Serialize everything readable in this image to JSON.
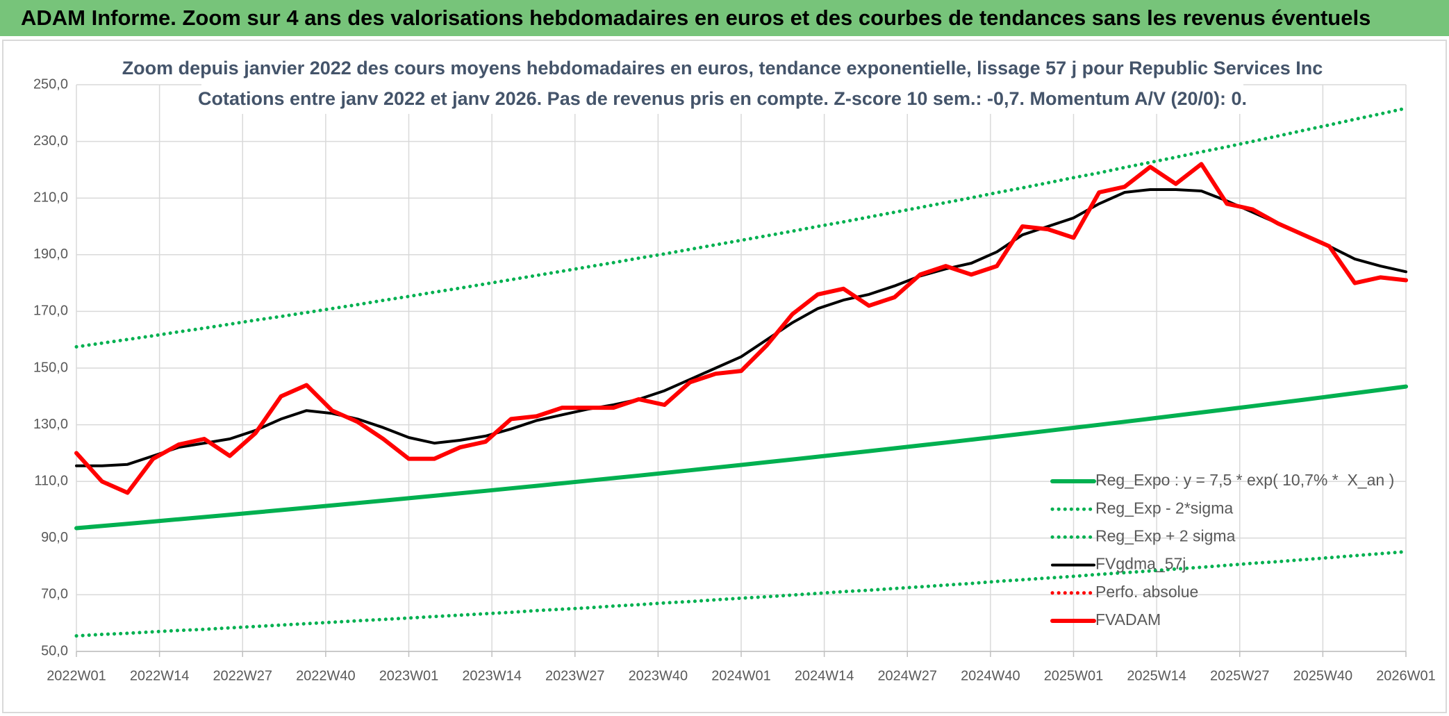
{
  "header": {
    "title": "ADAM Informe. Zoom sur 4 ans des valorisations hebdomadaires en euros et des courbes de tendances sans les revenus éventuels"
  },
  "chart_data": {
    "type": "line",
    "title": "Zoom depuis janvier 2022 des cours moyens hebdomadaires en euros, tendance exponentielle, lissage 57 j pour Republic Services Inc",
    "subtitle": "Cotations entre janv 2022 et janv 2026. Pas de revenus pris en compte. Z-score 10 sem.: -0,7. Momentum A/V (20/0): 0.",
    "x": [
      0,
      4,
      8,
      12,
      16,
      20,
      24,
      28,
      32,
      36,
      40,
      44,
      48,
      52,
      56,
      60,
      64,
      68,
      72,
      76,
      80,
      84,
      88,
      92,
      96,
      100,
      104,
      108,
      112,
      116,
      120,
      124,
      128,
      132,
      136,
      140,
      144,
      148,
      152,
      156,
      160,
      164,
      168,
      172,
      176,
      180,
      184,
      188,
      192,
      196,
      200,
      204,
      208
    ],
    "xlim": [
      0,
      208
    ],
    "xticks": [
      {
        "value": 0,
        "label": "2022W01"
      },
      {
        "value": 13,
        "label": "2022W14"
      },
      {
        "value": 26,
        "label": "2022W27"
      },
      {
        "value": 39,
        "label": "2022W40"
      },
      {
        "value": 52,
        "label": "2023W01"
      },
      {
        "value": 65,
        "label": "2023W14"
      },
      {
        "value": 78,
        "label": "2023W27"
      },
      {
        "value": 91,
        "label": "2023W40"
      },
      {
        "value": 104,
        "label": "2024W01"
      },
      {
        "value": 117,
        "label": "2024W14"
      },
      {
        "value": 130,
        "label": "2024W27"
      },
      {
        "value": 143,
        "label": "2024W40"
      },
      {
        "value": 156,
        "label": "2025W01"
      },
      {
        "value": 169,
        "label": "2025W14"
      },
      {
        "value": 182,
        "label": "2025W27"
      },
      {
        "value": 195,
        "label": "2025W40"
      },
      {
        "value": 208,
        "label": "2026W01"
      }
    ],
    "ylim": [
      50,
      250
    ],
    "yticks": [
      {
        "value": 50,
        "label": "50,0"
      },
      {
        "value": 70,
        "label": "70,0"
      },
      {
        "value": 90,
        "label": "90,0"
      },
      {
        "value": 110,
        "label": "110,0"
      },
      {
        "value": 130,
        "label": "130,0"
      },
      {
        "value": 150,
        "label": "150,0"
      },
      {
        "value": 170,
        "label": "170,0"
      },
      {
        "value": 190,
        "label": "190,0"
      },
      {
        "value": 210,
        "label": "210,0"
      },
      {
        "value": 230,
        "label": "230,0"
      },
      {
        "value": 250,
        "label": "250,0"
      }
    ],
    "grid": true,
    "legend": "bottom-right",
    "series": [
      {
        "name": "Reg_Expo : y = 7,5 * exp( 10,7% *  X_an )",
        "color": "#00b050",
        "dash": "solid",
        "values": [
          93.5,
          94.27,
          95.05,
          95.84,
          96.63,
          97.43,
          98.24,
          99.05,
          99.87,
          100.7,
          101.53,
          102.37,
          103.22,
          104.07,
          104.93,
          105.8,
          106.67,
          107.55,
          108.44,
          109.34,
          110.24,
          111.16,
          112.07,
          113.0,
          113.93,
          114.87,
          115.82,
          116.78,
          117.75,
          118.72,
          119.7,
          120.69,
          121.69,
          122.7,
          123.71,
          124.74,
          125.77,
          126.81,
          127.86,
          128.91,
          129.98,
          131.05,
          132.14,
          133.23,
          134.33,
          135.44,
          136.56,
          137.69,
          138.83,
          139.98,
          141.14,
          142.31,
          143.48
        ]
      },
      {
        "name": "Reg_Exp - 2*sigma",
        "color": "#00b050",
        "dash": "dotted",
        "values": [
          55.5,
          56.0,
          56.4,
          56.9,
          57.4,
          57.8,
          58.3,
          58.8,
          59.3,
          59.8,
          60.3,
          60.8,
          61.3,
          61.8,
          62.3,
          62.8,
          63.3,
          63.8,
          64.4,
          64.9,
          65.4,
          66.0,
          66.5,
          67.1,
          67.6,
          68.2,
          68.8,
          69.3,
          69.9,
          70.5,
          71.1,
          71.6,
          72.2,
          72.8,
          73.4,
          74.0,
          74.7,
          75.3,
          75.9,
          76.5,
          77.2,
          77.8,
          78.4,
          79.1,
          79.7,
          80.4,
          81.1,
          81.7,
          82.4,
          83.1,
          83.8,
          84.5,
          85.2
        ]
      },
      {
        "name": "Reg_Exp + 2 sigma",
        "color": "#00b050",
        "dash": "dotted",
        "values": [
          157.5,
          158.8,
          160.1,
          161.4,
          162.8,
          164.1,
          165.5,
          166.9,
          168.2,
          169.6,
          171.0,
          172.4,
          173.9,
          175.3,
          176.8,
          178.2,
          179.7,
          181.2,
          182.7,
          184.2,
          185.7,
          187.2,
          188.8,
          190.3,
          191.9,
          193.5,
          195.1,
          196.7,
          198.3,
          200.0,
          201.6,
          203.3,
          205.0,
          206.7,
          208.4,
          210.1,
          211.9,
          213.6,
          215.4,
          217.2,
          218.9,
          220.8,
          222.6,
          224.4,
          226.3,
          228.1,
          230.0,
          231.9,
          233.9,
          235.8,
          237.8,
          239.7,
          241.7
        ]
      },
      {
        "name": "FVgdma_57j",
        "color": "#000000",
        "dash": "solid",
        "values": [
          115.5,
          115.5,
          116,
          119,
          122,
          123.5,
          125,
          128,
          132,
          135,
          134,
          132,
          129,
          125.5,
          123.5,
          124.5,
          126,
          128.5,
          131.5,
          133.5,
          135.5,
          137,
          139,
          142,
          146,
          150,
          154,
          160,
          166,
          171,
          174,
          176,
          179,
          182.5,
          185,
          187,
          191,
          197,
          200,
          203,
          208,
          212,
          213,
          213,
          212.5,
          209,
          205,
          201,
          197,
          193,
          188.5,
          186,
          184
        ]
      },
      {
        "name": "Perfo. absolue",
        "color": "#ff0000",
        "dash": "dotted",
        "values": [
          null,
          null,
          null,
          null,
          null,
          null,
          null,
          null,
          null,
          null,
          null,
          null,
          null,
          null,
          null,
          null,
          null,
          null,
          null,
          null,
          null,
          null,
          null,
          null,
          null,
          null,
          null,
          null,
          null,
          null,
          null,
          null,
          null,
          null,
          null,
          null,
          null,
          null,
          null,
          null,
          null,
          null,
          null,
          null,
          null,
          null,
          null,
          null,
          null,
          null,
          null,
          null,
          null
        ]
      },
      {
        "name": "FVADAM",
        "color": "#ff0000",
        "dash": "solid",
        "values": [
          120,
          110,
          106,
          118,
          123,
          125,
          119,
          127,
          140,
          144,
          135,
          131,
          125,
          118,
          118,
          122,
          124,
          132,
          133,
          136,
          136,
          136,
          139,
          137,
          145,
          148,
          149,
          158,
          169,
          176,
          178,
          172,
          175,
          183,
          186,
          183,
          186,
          200,
          199,
          196,
          212,
          214,
          221,
          215,
          222,
          208,
          206,
          201,
          197,
          193,
          180,
          182,
          181
        ]
      }
    ]
  }
}
